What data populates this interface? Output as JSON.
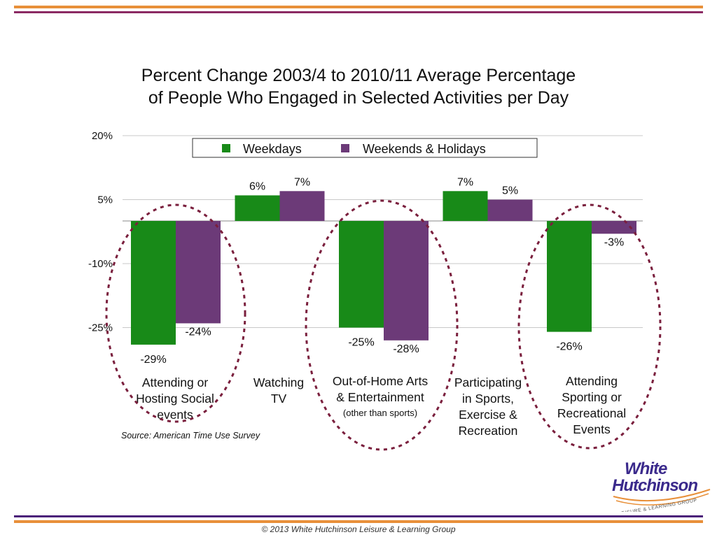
{
  "title_line1": "Percent Change 2003/4 to 2010/11 Average Percentage",
  "title_line2": "of People Who Engaged in Selected Activities per Day",
  "source": "Source: American Time Use Survey",
  "footer": "© 2013 White Hutchinson Leisure & Learning Group",
  "logo": {
    "line1": "White",
    "line2": "Hutchinson",
    "tagline": "LEISURE & LEARNING GROUP"
  },
  "colors": {
    "weekdays": "#188a18",
    "weekends": "#6c3a78",
    "ellipse": "#7a1f3d",
    "orange": "#e8903a",
    "purple": "#8b2a63"
  },
  "chart_data": {
    "type": "bar",
    "yticks": [
      "20%",
      "5%",
      "-10%",
      "-25%"
    ],
    "ytick_values": [
      20,
      5,
      -10,
      -25
    ],
    "ylim": [
      -35,
      20
    ],
    "grid": true,
    "legend_position": "top",
    "categories": [
      {
        "lines": [
          "Attending or",
          "Hosting Social",
          "events"
        ],
        "note": ""
      },
      {
        "lines": [
          "Watching",
          "TV"
        ],
        "note": ""
      },
      {
        "lines": [
          "Out-of-Home Arts",
          "& Entertainment"
        ],
        "note": "(other than sports)"
      },
      {
        "lines": [
          "Participating",
          "in Sports,",
          "Exercise &",
          "Recreation"
        ],
        "note": ""
      },
      {
        "lines": [
          "Attending",
          "Sporting or",
          "Recreational",
          "Events"
        ],
        "note": ""
      }
    ],
    "series": [
      {
        "name": "Weekdays",
        "values": [
          -29,
          6,
          -25,
          7,
          -26
        ],
        "labels": [
          "-29%",
          "6%",
          "-25%",
          "7%",
          "-26%"
        ]
      },
      {
        "name": "Weekends & Holidays",
        "values": [
          -24,
          7,
          -28,
          5,
          -3
        ],
        "labels": [
          "-24%",
          "7%",
          "-28%",
          "5%",
          "-3%"
        ]
      }
    ],
    "highlighted_categories": [
      0,
      2,
      4
    ]
  }
}
